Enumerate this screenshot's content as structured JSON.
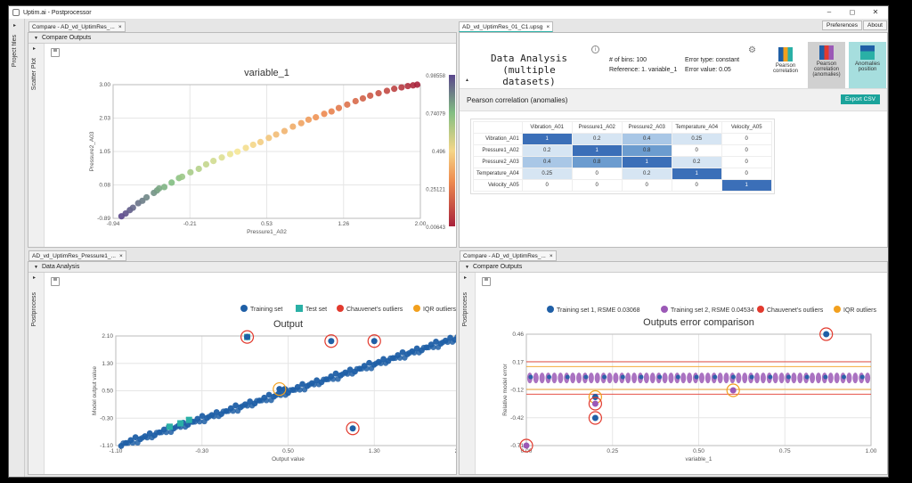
{
  "window": {
    "title": "Uptim.ai - Postprocessor",
    "min": "–",
    "max": "◻",
    "close": "✕"
  },
  "sidebar": {
    "label": "Project files",
    "arrow": "▸"
  },
  "top_right_buttons": [
    "Preferences",
    "About"
  ],
  "panel_tl": {
    "tab": "Compare - AD_vd_UptimRes_...",
    "tab_close": "×",
    "header": "Compare Outputs",
    "side_label": "Scatter Plot",
    "chart_data": {
      "type": "scatter",
      "title": "variable_1",
      "xlabel": "Pressure1_A02",
      "ylabel": "Pressure2_A03",
      "xlim": [
        -0.94,
        2.0
      ],
      "ylim": [
        -0.89,
        3.0
      ],
      "xticks": [
        "-0.94",
        "-0.21",
        "0.53",
        "1.26",
        "2.00"
      ],
      "yticks": [
        "3.00",
        "2.03",
        "1.05",
        "0.08",
        "-0.89"
      ],
      "colorbar_label": "variable_1",
      "colorbar_ticks": [
        "0.98558",
        "0.74079",
        "0.496",
        "0.25121",
        "0.00643"
      ],
      "points": [
        [
          -0.86,
          -0.83
        ],
        [
          -0.82,
          -0.75
        ],
        [
          -0.78,
          -0.65
        ],
        [
          -0.75,
          -0.58
        ],
        [
          -0.7,
          -0.45
        ],
        [
          -0.66,
          -0.38
        ],
        [
          -0.62,
          -0.28
        ],
        [
          -0.55,
          -0.15
        ],
        [
          -0.52,
          -0.08
        ],
        [
          -0.5,
          -0.02
        ],
        [
          -0.45,
          0.02
        ],
        [
          -0.38,
          0.15
        ],
        [
          -0.31,
          0.28
        ],
        [
          -0.28,
          0.32
        ],
        [
          -0.2,
          0.45
        ],
        [
          -0.12,
          0.55
        ],
        [
          -0.05,
          0.68
        ],
        [
          0.02,
          0.78
        ],
        [
          0.1,
          0.88
        ],
        [
          0.18,
          0.98
        ],
        [
          0.25,
          1.05
        ],
        [
          0.33,
          1.16
        ],
        [
          0.4,
          1.25
        ],
        [
          0.47,
          1.33
        ],
        [
          0.55,
          1.45
        ],
        [
          0.62,
          1.55
        ],
        [
          0.7,
          1.65
        ],
        [
          0.78,
          1.78
        ],
        [
          0.86,
          1.88
        ],
        [
          0.93,
          1.98
        ],
        [
          1.0,
          2.05
        ],
        [
          1.08,
          2.15
        ],
        [
          1.15,
          2.22
        ],
        [
          1.22,
          2.32
        ],
        [
          1.3,
          2.42
        ],
        [
          1.38,
          2.52
        ],
        [
          1.45,
          2.6
        ],
        [
          1.52,
          2.68
        ],
        [
          1.6,
          2.75
        ],
        [
          1.68,
          2.82
        ],
        [
          1.75,
          2.88
        ],
        [
          1.82,
          2.92
        ],
        [
          1.88,
          2.96
        ],
        [
          1.93,
          2.98
        ],
        [
          1.97,
          3.0
        ]
      ]
    }
  },
  "panel_tr": {
    "tab": "AD_vd_UptimRes_01_C1.upsg",
    "tab_close": "×",
    "title_line1": "Data Analysis",
    "title_line2": "(multiple datasets)",
    "info_icon": "i",
    "bins_label": "# of bins: 100",
    "reference_label": "Reference: 1. variable_1",
    "error_type_label": "Error type: constant",
    "error_value_label": "Error value: 0.05",
    "buttons": [
      "Pearson correlation",
      "Pearson correlation (anomalies)",
      "Anomalies position"
    ],
    "section_title": "Pearson correlation (anomalies)",
    "export_label": "Export CSV",
    "heat_cols": [
      "Vibration_A01",
      "Pressure1_A02",
      "Pressure2_A03",
      "Temperature_A04",
      "Velocity_A05"
    ],
    "heat_rows": [
      {
        "label": "Vibration_A01",
        "values": [
          "1",
          "0.2",
          "0.4",
          "0.25",
          "0"
        ]
      },
      {
        "label": "Pressure1_A02",
        "values": [
          "0.2",
          "1",
          "0.8",
          "0",
          "0"
        ]
      },
      {
        "label": "Pressure2_A03",
        "values": [
          "0.4",
          "0.8",
          "1",
          "0.2",
          "0"
        ]
      },
      {
        "label": "Temperature_A04",
        "values": [
          "0.25",
          "0",
          "0.2",
          "1",
          "0"
        ]
      },
      {
        "label": "Velocity_A05",
        "values": [
          "0",
          "0",
          "0",
          "0",
          "1"
        ]
      }
    ]
  },
  "panel_bl": {
    "tab": "AD_vd_UptimRes_Pressure1_...",
    "tab_close": "×",
    "header": "Data Analysis",
    "side_label": "Postprocess",
    "chart_data": {
      "type": "scatter",
      "title": "Output",
      "xlabel": "Output value",
      "ylabel": "Model output value",
      "xlim": [
        -1.1,
        2.1
      ],
      "ylim": [
        -1.1,
        2.1
      ],
      "xticks": [
        "-1.10",
        "-0.30",
        "0.50",
        "1.30",
        "2.10"
      ],
      "yticks": [
        "2.10",
        "1.30",
        "0.50",
        "-0.30",
        "-1.10"
      ],
      "legend": [
        "Training set",
        "Test set",
        "Chauvenet's outliers",
        "IQR outliers"
      ],
      "colors": {
        "train": "#1f5fa6",
        "test": "#2ab0a6",
        "chauvenet": "#e23a2e",
        "iqr": "#f2a01e"
      },
      "chauvenet_points": [
        [
          0.12,
          2.07
        ],
        [
          0.9,
          1.95
        ],
        [
          1.3,
          1.95
        ],
        [
          1.1,
          -0.6
        ]
      ],
      "iqr_points": [
        [
          0.42,
          0.55
        ]
      ],
      "test_points": [
        [
          -0.6,
          -0.55
        ],
        [
          -0.5,
          -0.45
        ],
        [
          -0.42,
          -0.35
        ],
        [
          0.12,
          2.07
        ]
      ]
    }
  },
  "panel_br": {
    "tab": "Compare - AD_vd_UptimRes_...",
    "tab_close": "×",
    "header": "Compare Outputs",
    "side_label": "Postprocess",
    "chart_data": {
      "type": "scatter",
      "title": "Outputs error comparison",
      "xlabel": "variable_1",
      "ylabel": "Relative model error",
      "xlim": [
        0,
        1
      ],
      "ylim": [
        -0.71,
        0.46
      ],
      "xticks": [
        "0.00",
        "0.25",
        "0.50",
        "0.75",
        "1.00"
      ],
      "yticks": [
        "0.46",
        "0.17",
        "-0.12",
        "-0.42",
        "-0.71"
      ],
      "legend": [
        "Training set 1, RSME 0.03068",
        "Training set 2, RSME 0.04534",
        "Chauvenet's outliers",
        "IQR outliers"
      ],
      "colors": {
        "s1": "#1f5fa6",
        "s2": "#9b59b6",
        "chauvenet": "#e23a2e",
        "iqr": "#f2a01e",
        "band_red": "#e23a2e",
        "band_orange": "#f2a01e"
      },
      "outliers": [
        [
          0.2,
          -0.2
        ],
        [
          0.2,
          -0.27
        ],
        [
          0.2,
          -0.42
        ],
        [
          0.6,
          -0.13
        ],
        [
          0.87,
          0.46
        ],
        [
          0.0,
          -0.71
        ]
      ]
    }
  }
}
